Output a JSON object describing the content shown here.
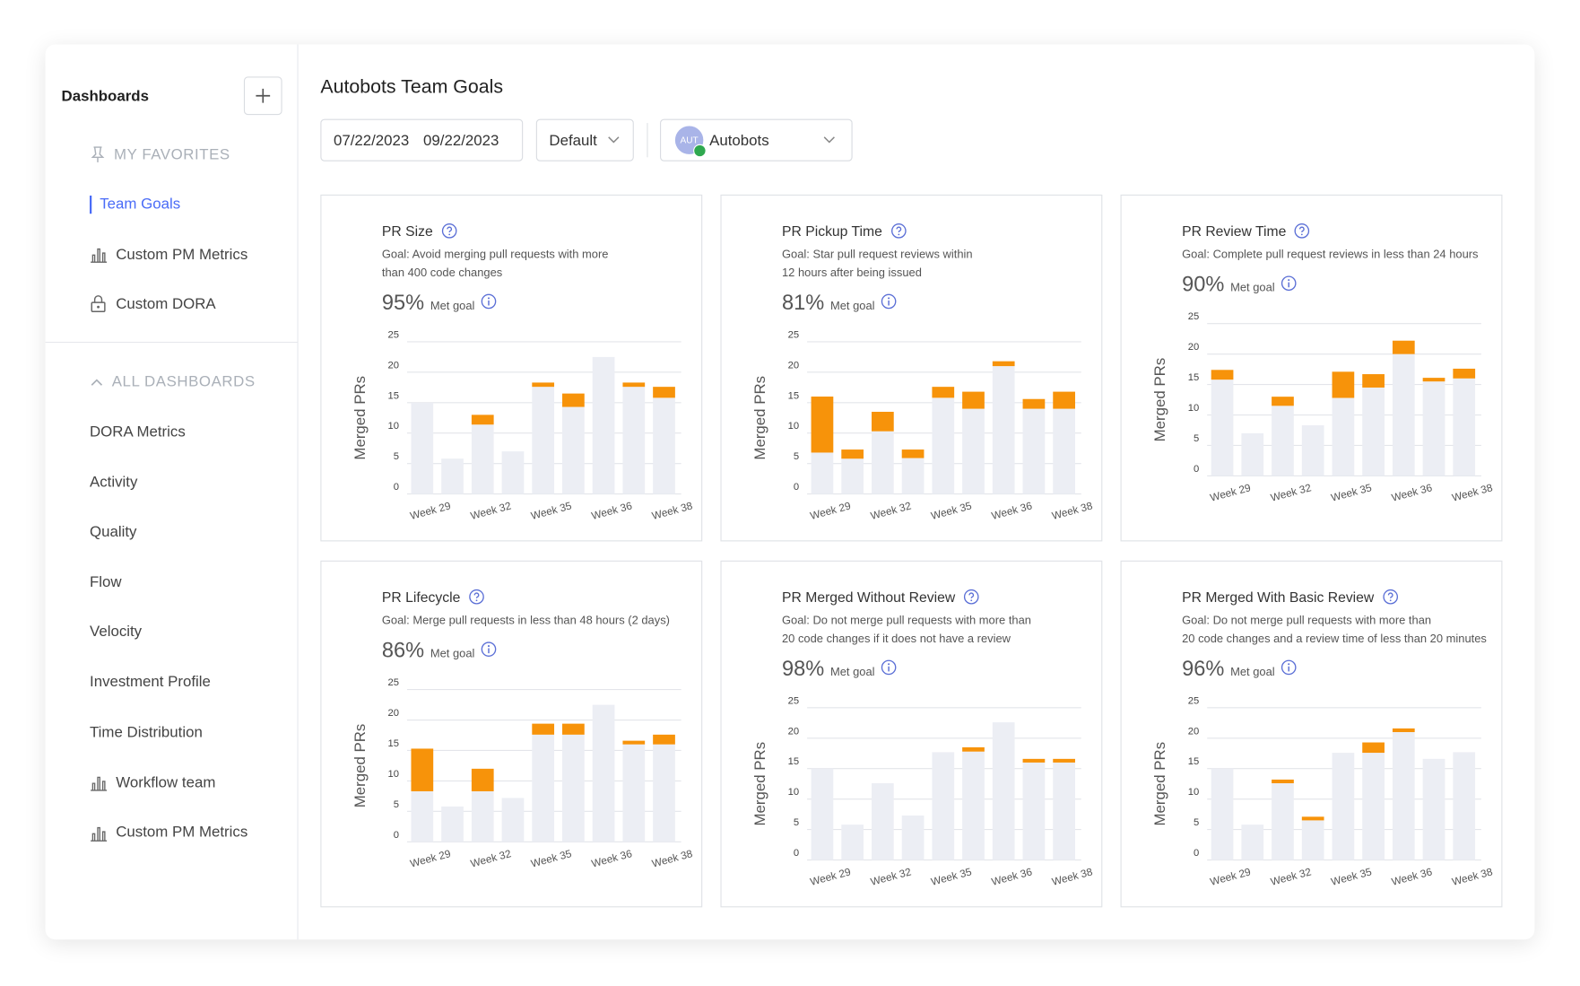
{
  "sidebar": {
    "title": "Dashboards",
    "favorites_heading": "MY FAVORITES",
    "favorites": [
      "Team Goals",
      "Custom PM Metrics",
      "Custom DORA"
    ],
    "all_heading": "ALL DASHBOARDS",
    "dashboards": [
      "DORA Metrics",
      "Activity",
      "Quality",
      "Flow",
      "Velocity",
      "Investment Profile",
      "Time Distribution",
      "Workflow team",
      "Custom PM Metrics"
    ]
  },
  "header": {
    "title": "Autobots Team Goals",
    "date_start": "07/22/2023",
    "date_end": "09/22/2023",
    "view": "Default",
    "team": "Autobots",
    "team_avatar": "AUT"
  },
  "chart_data": [
    {
      "type": "bar",
      "stacked": true,
      "title": "PR Size",
      "goal": [
        "Goal: Avoid merging pull requests with more",
        "than 400 code changes"
      ],
      "score": "95%",
      "score_label": "Met goal",
      "ylabel": "Merged PRs",
      "categories": [
        "Week 29",
        null,
        "Week 32",
        null,
        "Week 35",
        null,
        "Week 36",
        null,
        "Week 38"
      ],
      "series": [
        {
          "color": "#eceef4",
          "values": [
            15,
            5.8,
            11.4,
            7,
            17.6,
            14.3,
            22.5,
            17.6,
            15.8
          ]
        },
        {
          "color": "#f7930a",
          "values": [
            0,
            0,
            1.6,
            0,
            0.7,
            2.2,
            0,
            0.7,
            1.8
          ]
        }
      ],
      "ylim": [
        0,
        25
      ],
      "yticks": [
        0,
        5,
        10,
        15,
        20,
        25
      ],
      "grid": true
    },
    {
      "type": "bar",
      "stacked": true,
      "title": "PR Pickup Time",
      "goal": [
        "Goal: Star pull request reviews within",
        "12 hours after being issued"
      ],
      "score": "81%",
      "score_label": "Met goal",
      "ylabel": "Merged PRs",
      "categories": [
        "Week 29",
        null,
        "Week 32",
        null,
        "Week 35",
        null,
        "Week 36",
        null,
        "Week 38"
      ],
      "series": [
        {
          "color": "#eceef4",
          "values": [
            6.8,
            5.8,
            10.3,
            5.9,
            15.8,
            14,
            21,
            14,
            14
          ]
        },
        {
          "color": "#f7930a",
          "values": [
            9.2,
            1.5,
            3.2,
            1.4,
            1.8,
            2.8,
            0.8,
            1.6,
            2.8
          ]
        }
      ],
      "ylim": [
        0,
        25
      ],
      "yticks": [
        0,
        5,
        10,
        15,
        20,
        25
      ],
      "grid": true
    },
    {
      "type": "bar",
      "stacked": true,
      "title": "PR Review Time",
      "goal": [
        "Goal: Complete pull request reviews in less than 24 hours"
      ],
      "score": "90%",
      "score_label": "Met goal",
      "ylabel": "Merged PRs",
      "categories": [
        "Week 29",
        null,
        "Week 32",
        null,
        "Week 35",
        null,
        "Week 36",
        null,
        "Week 38"
      ],
      "series": [
        {
          "color": "#eceef4",
          "values": [
            15.8,
            7,
            11.5,
            8.3,
            12.8,
            14.5,
            20,
            15.5,
            16
          ]
        },
        {
          "color": "#f7930a",
          "values": [
            1.6,
            0,
            1.5,
            0,
            4.3,
            2.2,
            2.2,
            0.6,
            1.6
          ]
        }
      ],
      "ylim": [
        0,
        25
      ],
      "yticks": [
        0,
        5,
        10,
        15,
        20,
        25
      ],
      "grid": true
    },
    {
      "type": "bar",
      "stacked": true,
      "title": "PR Lifecycle",
      "goal": [
        "Goal: Merge pull requests in less than 48 hours (2 days)"
      ],
      "score": "86%",
      "score_label": "Met goal",
      "ylabel": "Merged PRs",
      "categories": [
        "Week 29",
        null,
        "Week 32",
        null,
        "Week 35",
        null,
        "Week 36",
        null,
        "Week 38"
      ],
      "series": [
        {
          "color": "#eceef4",
          "values": [
            8.3,
            5.8,
            8.3,
            7.2,
            17.6,
            17.6,
            22.5,
            16,
            16
          ]
        },
        {
          "color": "#f7930a",
          "values": [
            7,
            0,
            3.7,
            0,
            1.8,
            1.8,
            0,
            0.6,
            1.6
          ]
        }
      ],
      "ylim": [
        0,
        25
      ],
      "yticks": [
        0,
        5,
        10,
        15,
        20,
        25
      ],
      "grid": true
    },
    {
      "type": "bar",
      "stacked": true,
      "title": "PR Merged Without Review",
      "goal": [
        "Goal: Do not merge pull requests with more than",
        "20 code changes if it does not have a review"
      ],
      "score": "98%",
      "score_label": "Met goal",
      "ylabel": "Merged PRs",
      "categories": [
        "Week 29",
        null,
        "Week 32",
        null,
        "Week 35",
        null,
        "Week 36",
        null,
        "Week 38"
      ],
      "series": [
        {
          "color": "#eceef4",
          "values": [
            15,
            5.8,
            12.6,
            7.3,
            17.7,
            17.8,
            22.6,
            16,
            16
          ]
        },
        {
          "color": "#f7930a",
          "values": [
            0,
            0,
            0,
            0,
            0,
            0.7,
            0,
            0.6,
            0.6
          ]
        }
      ],
      "ylim": [
        0,
        25
      ],
      "yticks": [
        0,
        5,
        10,
        15,
        20,
        25
      ],
      "grid": true
    },
    {
      "type": "bar",
      "stacked": true,
      "title": "PR Merged With Basic Review",
      "goal": [
        "Goal: Do not merge pull requests with more than",
        "20 code changes and a review time of less than 20 minutes"
      ],
      "score": "96%",
      "score_label": "Met goal",
      "ylabel": "Merged PRs",
      "categories": [
        "Week 29",
        null,
        "Week 32",
        null,
        "Week 35",
        null,
        "Week 36",
        null,
        "Week 38"
      ],
      "series": [
        {
          "color": "#eceef4",
          "values": [
            15,
            5.8,
            12.6,
            6.5,
            17.6,
            17.6,
            21,
            16.6,
            17.7
          ]
        },
        {
          "color": "#f7930a",
          "values": [
            0,
            0,
            0.6,
            0.6,
            0,
            1.7,
            0.6,
            0,
            0
          ]
        }
      ],
      "ylim": [
        0,
        25
      ],
      "yticks": [
        0,
        5,
        10,
        15,
        20,
        25
      ],
      "grid": true
    }
  ]
}
